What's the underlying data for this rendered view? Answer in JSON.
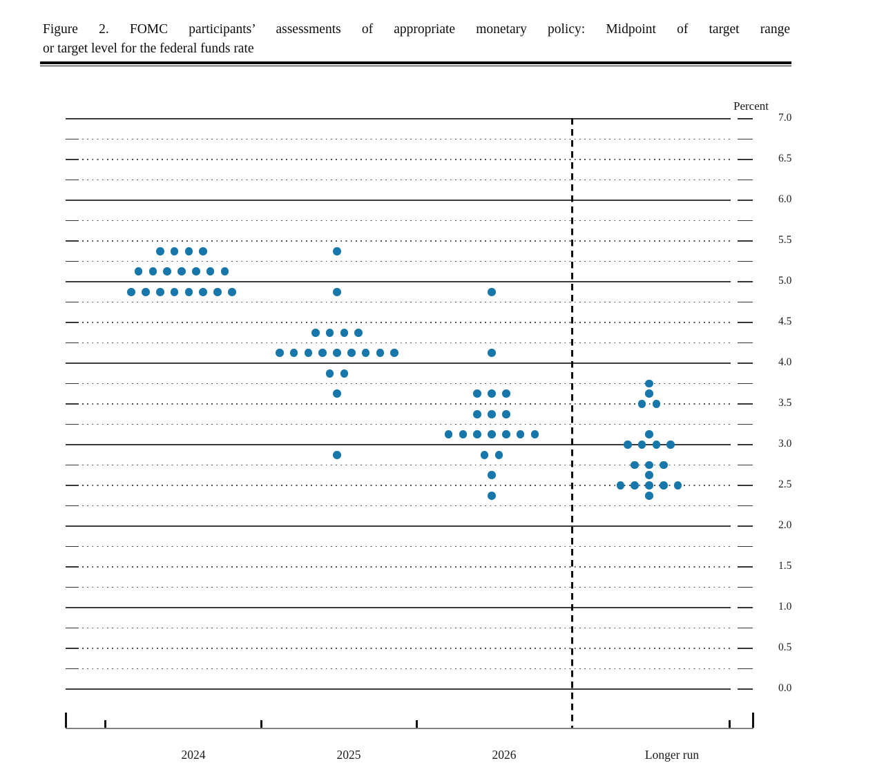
{
  "header": {
    "title_line1": "Figure 2.  FOMC participants’ assessments of appropriate monetary policy:  Midpoint of target range",
    "title_line2": "or target level for the federal funds rate"
  },
  "chart_data": {
    "type": "scatter",
    "subtype": "fomc-dot-plot",
    "title": "Figure 2. FOMC participants’ assessments of appropriate monetary policy: Midpoint of target range or target level for the federal funds rate",
    "ylabel": "Percent",
    "xlabel": "",
    "ylim": [
      0.0,
      7.0
    ],
    "grid_minor_step": 0.25,
    "ytick_label_step": 0.5,
    "grid": true,
    "legend_position": "none",
    "dot_color": "#1777ab",
    "has_longer_run_divider": true,
    "ytick_labels": [
      "7.0",
      "6.5",
      "6.0",
      "5.5",
      "5.0",
      "4.5",
      "4.0",
      "3.5",
      "3.0",
      "2.5",
      "2.0",
      "1.5",
      "1.0",
      "0.5",
      "0.0"
    ],
    "categories": [
      "2024",
      "2025",
      "2026",
      "Longer run"
    ],
    "series": [
      {
        "category": "2024",
        "projections": [
          {
            "rate": 5.375,
            "count": 4
          },
          {
            "rate": 5.125,
            "count": 7
          },
          {
            "rate": 4.875,
            "count": 8
          }
        ]
      },
      {
        "category": "2025",
        "projections": [
          {
            "rate": 5.375,
            "count": 1
          },
          {
            "rate": 4.875,
            "count": 1
          },
          {
            "rate": 4.375,
            "count": 4
          },
          {
            "rate": 4.125,
            "count": 9
          },
          {
            "rate": 3.875,
            "count": 2
          },
          {
            "rate": 3.625,
            "count": 1
          },
          {
            "rate": 2.875,
            "count": 1
          }
        ]
      },
      {
        "category": "2026",
        "projections": [
          {
            "rate": 4.875,
            "count": 1
          },
          {
            "rate": 4.125,
            "count": 1
          },
          {
            "rate": 3.625,
            "count": 3
          },
          {
            "rate": 3.375,
            "count": 3
          },
          {
            "rate": 3.125,
            "count": 7
          },
          {
            "rate": 2.875,
            "count": 2
          },
          {
            "rate": 2.625,
            "count": 1
          },
          {
            "rate": 2.375,
            "count": 1
          }
        ]
      },
      {
        "category": "Longer run",
        "projections": [
          {
            "rate": 3.75,
            "count": 1
          },
          {
            "rate": 3.625,
            "count": 1
          },
          {
            "rate": 3.5,
            "count": 2
          },
          {
            "rate": 3.125,
            "count": 1
          },
          {
            "rate": 3.0,
            "count": 4
          },
          {
            "rate": 2.75,
            "count": 3
          },
          {
            "rate": 2.625,
            "count": 1
          },
          {
            "rate": 2.5,
            "count": 5
          },
          {
            "rate": 2.375,
            "count": 1
          }
        ]
      }
    ]
  }
}
